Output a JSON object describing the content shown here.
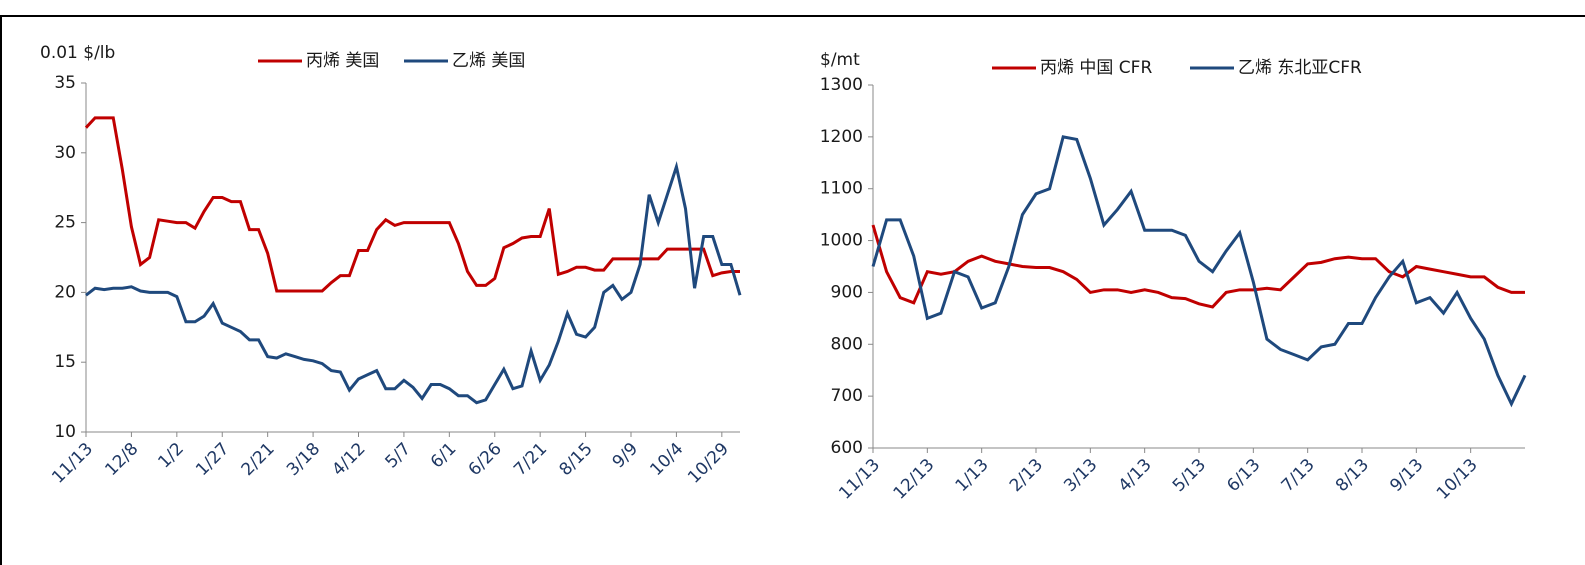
{
  "chart_data": [
    {
      "type": "line",
      "y_label": "0.01 $/lb",
      "categories": [
        "11/13",
        null,
        null,
        null,
        null,
        "12/8",
        null,
        null,
        null,
        null,
        "1/2",
        null,
        null,
        null,
        null,
        "1/27",
        null,
        null,
        null,
        null,
        "2/21",
        null,
        null,
        null,
        null,
        "3/18",
        null,
        null,
        null,
        null,
        "4/12",
        null,
        null,
        null,
        null,
        "5/7",
        null,
        null,
        null,
        null,
        "6/1",
        null,
        null,
        null,
        null,
        "6/26",
        null,
        null,
        null,
        null,
        "7/21",
        null,
        null,
        null,
        null,
        "8/15",
        null,
        null,
        null,
        null,
        "9/9",
        null,
        null,
        null,
        null,
        "10/4",
        null,
        null,
        null,
        null,
        "10/29",
        null,
        null
      ],
      "series": [
        {
          "name": "丙烯 美国",
          "color": "#c00000",
          "values": [
            31.8,
            32.5,
            32.5,
            32.5,
            28.8,
            24.7,
            22,
            22.5,
            25.2,
            25.1,
            25,
            25,
            24.6,
            25.8,
            26.8,
            26.8,
            26.5,
            26.5,
            24.5,
            24.5,
            22.8,
            20.1,
            20.1,
            20.1,
            20.1,
            20.1,
            20.1,
            20.7,
            21.2,
            21.2,
            23,
            23,
            24.5,
            25.2,
            24.8,
            25,
            25,
            25,
            25,
            25,
            25,
            23.5,
            21.5,
            20.5,
            20.5,
            21,
            23.2,
            23.5,
            23.9,
            24,
            24,
            26,
            21.3,
            21.5,
            21.8,
            21.8,
            21.6,
            21.6,
            22.4,
            22.4,
            22.4,
            22.4,
            22.4,
            22.4,
            23.1,
            23.1,
            23.1,
            23.1,
            23.1,
            21.2,
            21.4,
            21.5,
            21.5
          ]
        },
        {
          "name": "乙烯 美国",
          "color": "#1f497d",
          "values": [
            19.8,
            20.3,
            20.2,
            20.3,
            20.3,
            20.4,
            20.1,
            20,
            20,
            20,
            19.7,
            17.9,
            17.9,
            18.3,
            19.2,
            17.8,
            17.5,
            17.2,
            16.6,
            16.6,
            15.4,
            15.3,
            15.6,
            15.4,
            15.2,
            15.1,
            14.9,
            14.4,
            14.3,
            13,
            13.8,
            14.1,
            14.4,
            13.1,
            13.1,
            13.7,
            13.2,
            12.4,
            13.4,
            13.4,
            13.1,
            12.6,
            12.6,
            12.1,
            12.3,
            13.4,
            14.5,
            13.1,
            13.3,
            15.8,
            13.7,
            14.8,
            16.5,
            18.5,
            17,
            16.8,
            17.5,
            20,
            20.5,
            19.5,
            20,
            22,
            27,
            25,
            27,
            29,
            26,
            20.3,
            24,
            24,
            22,
            22,
            19.8
          ]
        }
      ],
      "ylim": [
        10,
        35
      ],
      "yticks": [
        10,
        15,
        20,
        25,
        30,
        35
      ]
    },
    {
      "type": "line",
      "y_label": "$/mt",
      "categories": [
        "11/13",
        null,
        null,
        null,
        "12/13",
        null,
        null,
        null,
        "1/13",
        null,
        null,
        null,
        "2/13",
        null,
        null,
        null,
        "3/13",
        null,
        null,
        null,
        "4/13",
        null,
        null,
        null,
        "5/13",
        null,
        null,
        null,
        "6/13",
        null,
        null,
        null,
        "7/13",
        null,
        null,
        null,
        "8/13",
        null,
        null,
        null,
        "9/13",
        null,
        null,
        null,
        "10/13",
        null,
        null,
        null,
        null
      ],
      "series": [
        {
          "name": "丙烯 中国 CFR",
          "color": "#c00000",
          "values": [
            1030,
            940,
            890,
            880,
            940,
            935,
            940,
            960,
            970,
            960,
            955,
            950,
            948,
            948,
            940,
            925,
            900,
            905,
            905,
            900,
            905,
            900,
            890,
            888,
            878,
            872,
            900,
            905,
            905,
            908,
            905,
            930,
            955,
            958,
            965,
            968,
            965,
            965,
            940,
            930,
            950,
            945,
            940,
            935,
            930,
            930,
            910,
            900,
            900
          ]
        },
        {
          "name": "乙烯 东北亚CFR",
          "color": "#1f497d",
          "values": [
            950,
            1040,
            1040,
            970,
            850,
            860,
            940,
            930,
            870,
            880,
            950,
            1050,
            1090,
            1100,
            1200,
            1195,
            1120,
            1030,
            1060,
            1095,
            1020,
            1020,
            1020,
            1010,
            960,
            940,
            980,
            1015,
            920,
            810,
            790,
            780,
            770,
            795,
            800,
            840,
            840,
            890,
            930,
            960,
            880,
            890,
            860,
            900,
            850,
            810,
            740,
            685,
            740
          ]
        }
      ],
      "ylim": [
        600,
        1300
      ],
      "yticks": [
        600,
        700,
        800,
        900,
        1000,
        1100,
        1200,
        1300
      ]
    }
  ]
}
